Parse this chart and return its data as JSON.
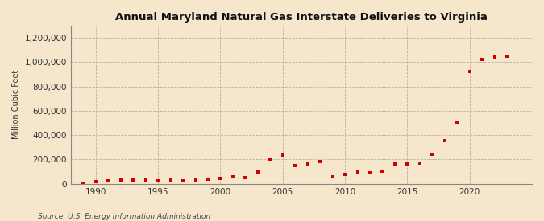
{
  "title": "Annual Maryland Natural Gas Interstate Deliveries to Virginia",
  "ylabel": "Million Cubic Feet",
  "source": "Source: U.S. Energy Information Administration",
  "background_color": "#f5e6cc",
  "marker_color": "#cc0000",
  "years": [
    1989,
    1990,
    1991,
    1992,
    1993,
    1994,
    1995,
    1996,
    1997,
    1998,
    1999,
    2000,
    2001,
    2002,
    2003,
    2004,
    2005,
    2006,
    2007,
    2008,
    2009,
    2010,
    2011,
    2012,
    2013,
    2014,
    2015,
    2016,
    2017,
    2018,
    2019,
    2020,
    2021,
    2022,
    2023
  ],
  "values": [
    2000,
    15000,
    25000,
    30000,
    28000,
    30000,
    25000,
    28000,
    22000,
    28000,
    35000,
    45000,
    55000,
    50000,
    100000,
    205000,
    235000,
    150000,
    160000,
    185000,
    55000,
    80000,
    95000,
    90000,
    105000,
    165000,
    165000,
    168000,
    240000,
    355000,
    505000,
    920000,
    1025000,
    1045000,
    1050000
  ],
  "xlim": [
    1988,
    2025
  ],
  "ylim": [
    0,
    1300000
  ],
  "yticks": [
    0,
    200000,
    400000,
    600000,
    800000,
    1000000,
    1200000
  ],
  "xticks": [
    1990,
    1995,
    2000,
    2005,
    2010,
    2015,
    2020
  ]
}
